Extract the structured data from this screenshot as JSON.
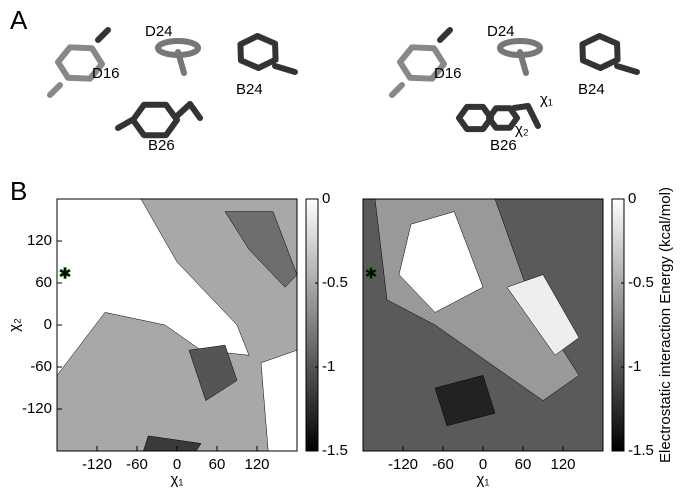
{
  "figure": {
    "panel_labels": [
      "A",
      "B"
    ],
    "structures": [
      {
        "labels": [
          "D16",
          "D24",
          "B24",
          "B26"
        ]
      },
      {
        "labels": [
          "D16",
          "D24",
          "B24",
          "B26",
          "χ₁",
          "χ₂"
        ]
      }
    ]
  },
  "chart_data": [
    {
      "type": "contour",
      "x_label": "χ₁",
      "y_label": "χ₂",
      "xlim": [
        -180,
        180
      ],
      "ylim": [
        -180,
        180
      ],
      "xticks": [
        -120,
        -60,
        0,
        60,
        120
      ],
      "yticks": [
        -120,
        -60,
        0,
        60,
        120
      ],
      "marker": {
        "x": -168,
        "y": 72,
        "color": "#33dd33"
      },
      "colorbar": {
        "lim": [
          -1.5,
          0
        ],
        "ticks": [
          0,
          -0.5,
          -1,
          -1.5
        ]
      }
    },
    {
      "type": "contour",
      "x_label": "χ₁",
      "xlim": [
        -180,
        180
      ],
      "ylim": [
        -180,
        180
      ],
      "xticks": [
        -120,
        -60,
        0,
        60,
        120
      ],
      "marker": {
        "x": -168,
        "y": 72,
        "color": "#33dd33"
      },
      "colorbar": {
        "lim": [
          -1.5,
          0
        ],
        "ticks": [
          0,
          -0.5,
          -1,
          -1.5
        ],
        "label": "Electrostatic interaction Energy (kcal/mol)"
      }
    }
  ]
}
